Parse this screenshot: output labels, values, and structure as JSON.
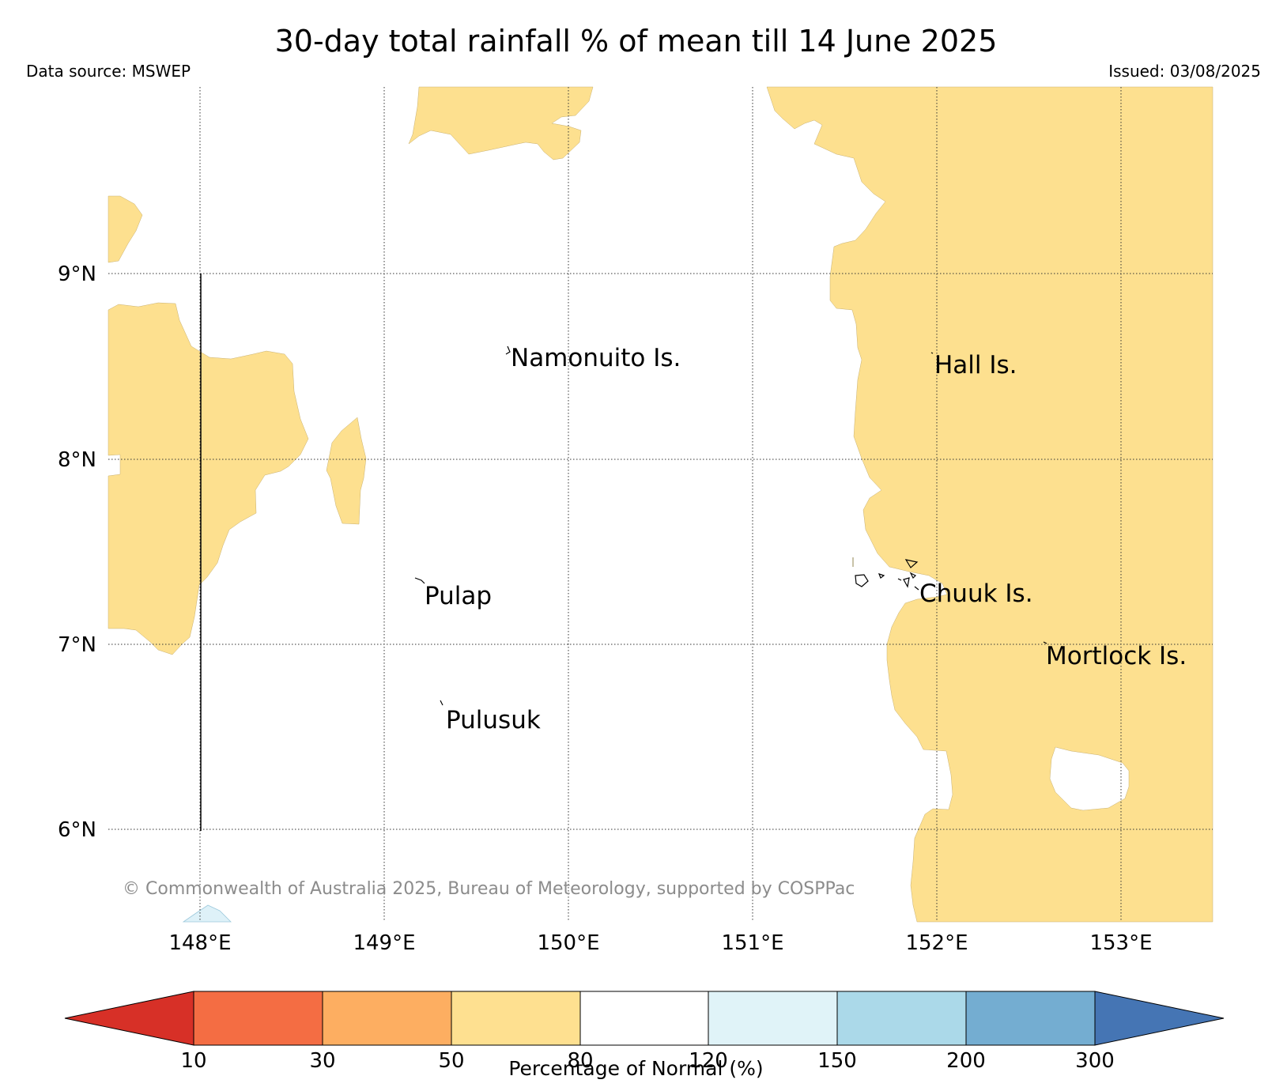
{
  "header": {
    "title": "30-day total rainfall % of mean till 14 June 2025",
    "data_source": "Data source: MSWEP",
    "issued": "Issued: 03/08/2025"
  },
  "map": {
    "lat_labels": [
      "9°N",
      "8°N",
      "7°N",
      "6°N"
    ],
    "lon_labels": [
      "148°E",
      "149°E",
      "150°E",
      "151°E",
      "152°E",
      "153°E"
    ],
    "places": [
      "Namonuito Is.",
      "Hall Is.",
      "Pulap",
      "Chuuk Is.",
      "Mortlock Is.",
      "Pulusuk"
    ],
    "copyright": "© Commonwealth of Australia 2025, Bureau of Meteorology, supported by COSPPac",
    "field_colors": {
      "below_normal_50_80": "#fde08f",
      "normal_80_120": "#ffffff",
      "above_normal_120_150": "#def1f8"
    }
  },
  "colorbar": {
    "label": "Percentage of Normal (%)",
    "ticks": [
      "10",
      "30",
      "50",
      "80",
      "120",
      "150",
      "200",
      "300"
    ],
    "colors": [
      "#d73027",
      "#f46d43",
      "#fdae61",
      "#fee090",
      "#ffffff",
      "#e0f3f8",
      "#abd9e9",
      "#74add1",
      "#4575b4"
    ]
  }
}
